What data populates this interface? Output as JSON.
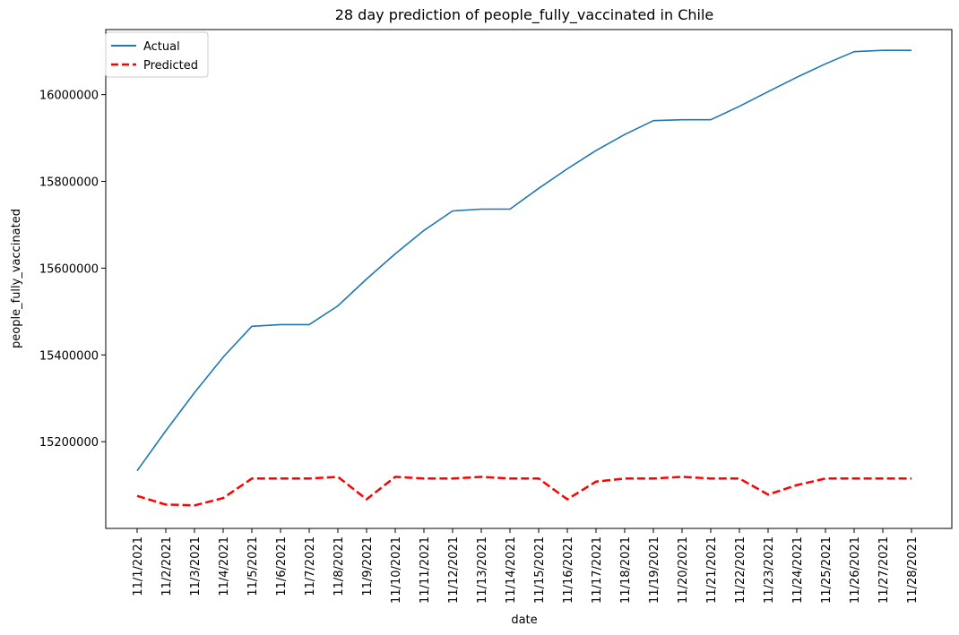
{
  "chart_data": {
    "type": "line",
    "title": "28 day prediction of people_fully_vaccinated in Chile",
    "xlabel": "date",
    "ylabel": "people_fully_vaccinated",
    "x": [
      "11/1/2021",
      "11/2/2021",
      "11/3/2021",
      "11/4/2021",
      "11/5/2021",
      "11/6/2021",
      "11/7/2021",
      "11/8/2021",
      "11/9/2021",
      "11/10/2021",
      "11/11/2021",
      "11/12/2021",
      "11/13/2021",
      "11/14/2021",
      "11/15/2021",
      "11/16/2021",
      "11/17/2021",
      "11/18/2021",
      "11/19/2021",
      "11/20/2021",
      "11/21/2021",
      "11/22/2021",
      "11/23/2021",
      "11/24/2021",
      "11/25/2021",
      "11/26/2021",
      "11/27/2021",
      "11/28/2021"
    ],
    "yticks": [
      15200000,
      15400000,
      15600000,
      15800000,
      16000000
    ],
    "ylim": [
      15000000,
      16150000
    ],
    "grid": false,
    "legend_position": "top-left",
    "series": [
      {
        "name": "Actual",
        "color": "#1f77b4",
        "style": "solid",
        "values": [
          15133000,
          15225000,
          15313000,
          15395000,
          15466000,
          15470000,
          15470000,
          15513000,
          15575000,
          15633000,
          15687000,
          15732000,
          15736000,
          15736000,
          15784000,
          15829000,
          15871000,
          15908000,
          15940000,
          15942000,
          15942000,
          15973000,
          16007000,
          16040000,
          16071000,
          16099000,
          16102000,
          16102000
        ]
      },
      {
        "name": "Predicted",
        "color": "#ff0000",
        "style": "dashed",
        "values": [
          15075000,
          15055000,
          15053000,
          15070000,
          15115000,
          15115000,
          15115000,
          15119000,
          15067000,
          15119000,
          15115000,
          15115000,
          15119000,
          15115000,
          15115000,
          15067000,
          15108000,
          15115000,
          15115000,
          15119000,
          15115000,
          15115000,
          15078000,
          15100000,
          15115000,
          15115000,
          15115000,
          15115000
        ]
      }
    ]
  }
}
